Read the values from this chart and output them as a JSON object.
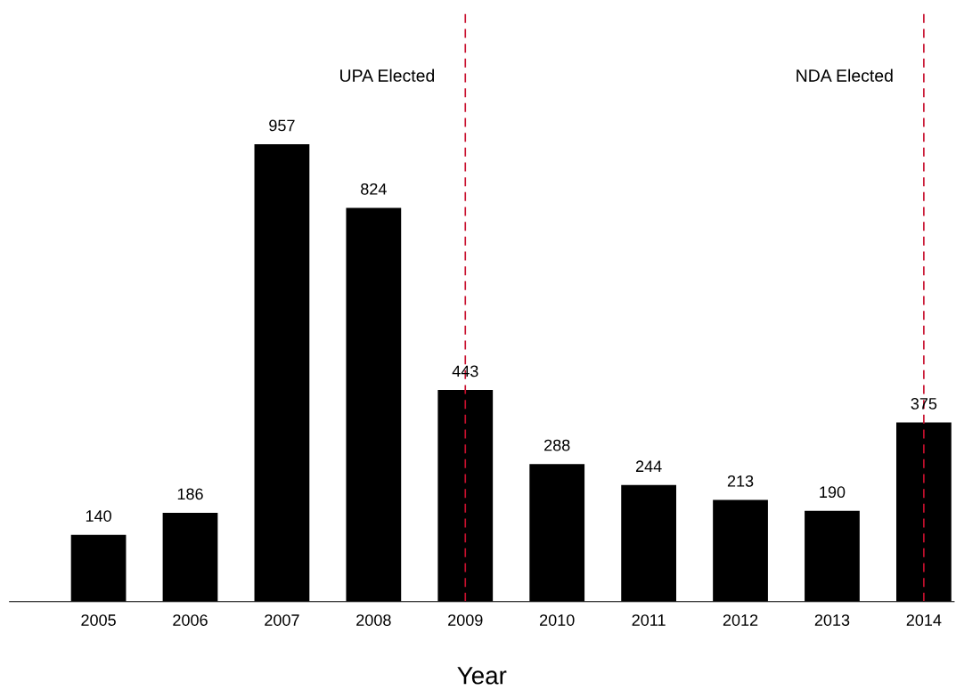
{
  "chart_data": {
    "type": "bar",
    "xlabel": "Year",
    "categories": [
      "2005",
      "2006",
      "2007",
      "2008",
      "2009",
      "2010",
      "2011",
      "2012",
      "2013",
      "2014"
    ],
    "values": [
      140,
      186,
      957,
      824,
      443,
      288,
      244,
      213,
      190,
      375
    ],
    "color": "#000000",
    "data_labels": true,
    "ylim": [
      0,
      1240
    ],
    "tick_labels": "x",
    "grid": false,
    "legend": false,
    "ref_lines": [
      {
        "axis": "x",
        "value": "2009",
        "label": "UPA Elected",
        "color": "#c8102e",
        "line_style": "dashed"
      },
      {
        "axis": "x",
        "value": "2014",
        "label": "NDA Elected",
        "color": "#c8102e",
        "line_style": "dashed"
      }
    ]
  }
}
